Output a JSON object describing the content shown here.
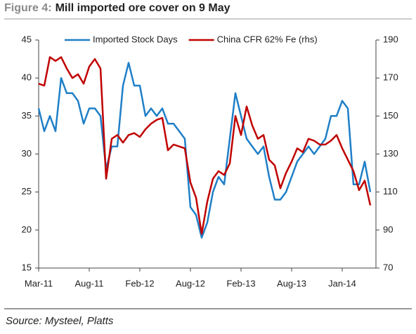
{
  "chart_data": {
    "type": "line",
    "figure_label": "Figure 4:",
    "title": "Mill imported ore cover on 9 May",
    "source": "Source: Mysteel, Platts",
    "x": [
      0,
      1,
      2,
      3,
      4,
      5,
      6,
      7,
      8,
      9,
      10,
      11,
      12,
      13,
      14,
      15,
      16,
      17,
      18,
      19,
      20,
      21,
      22,
      23,
      24,
      25,
      26,
      27,
      28,
      29,
      30,
      31,
      32,
      33,
      34,
      35,
      36,
      37,
      38,
      39,
      40,
      41,
      42,
      43,
      44,
      45,
      46,
      47,
      48,
      49,
      50,
      51,
      52,
      53,
      54,
      55,
      56,
      57,
      58,
      59
    ],
    "xlim": [
      0,
      60
    ],
    "xticks": [
      {
        "value": 0,
        "label": "Mar-11"
      },
      {
        "value": 9,
        "label": "Aug-11"
      },
      {
        "value": 18,
        "label": "Feb-12"
      },
      {
        "value": 27,
        "label": "Aug-12"
      },
      {
        "value": 36,
        "label": "Feb-13"
      },
      {
        "value": 45,
        "label": "Aug-13"
      },
      {
        "value": 54,
        "label": "Jan-14"
      }
    ],
    "ylim": [
      15,
      45
    ],
    "yticks": [
      15,
      20,
      25,
      30,
      35,
      40,
      45
    ],
    "y2lim": [
      70,
      190
    ],
    "y2ticks": [
      70,
      90,
      110,
      130,
      150,
      170,
      190
    ],
    "legend": "top",
    "grid": false,
    "series": [
      {
        "name": "Imported Stock Days",
        "color": "#1f7fc7",
        "values": [
          36,
          33,
          35,
          33,
          40,
          38,
          38,
          37,
          34,
          36,
          36,
          35,
          28,
          31,
          31,
          39,
          42,
          39,
          39,
          35,
          36,
          35,
          36,
          34,
          34,
          33,
          32,
          23,
          22,
          19,
          21,
          25,
          27,
          26,
          32,
          38,
          35,
          32,
          31,
          30,
          31,
          27,
          24,
          24,
          25,
          27,
          29,
          30,
          31,
          30,
          31,
          32,
          35,
          35,
          37,
          36,
          26,
          26,
          29,
          25
        ]
      },
      {
        "name": "China CFR 62% Fe (rhs)",
        "color": "#c00000",
        "axis": "y2",
        "values": [
          167,
          166,
          181,
          179,
          181,
          175,
          170,
          172,
          167,
          176,
          180,
          175,
          117,
          138,
          140,
          136,
          140,
          141,
          139,
          143,
          146,
          148,
          149,
          132,
          135,
          134,
          133,
          115,
          107,
          88,
          105,
          117,
          121,
          119,
          125,
          150,
          140,
          155,
          145,
          138,
          140,
          127,
          124,
          112,
          120,
          126,
          133,
          131,
          138,
          137,
          135,
          135,
          137,
          140,
          133,
          127,
          121,
          111,
          116,
          103
        ]
      }
    ]
  }
}
